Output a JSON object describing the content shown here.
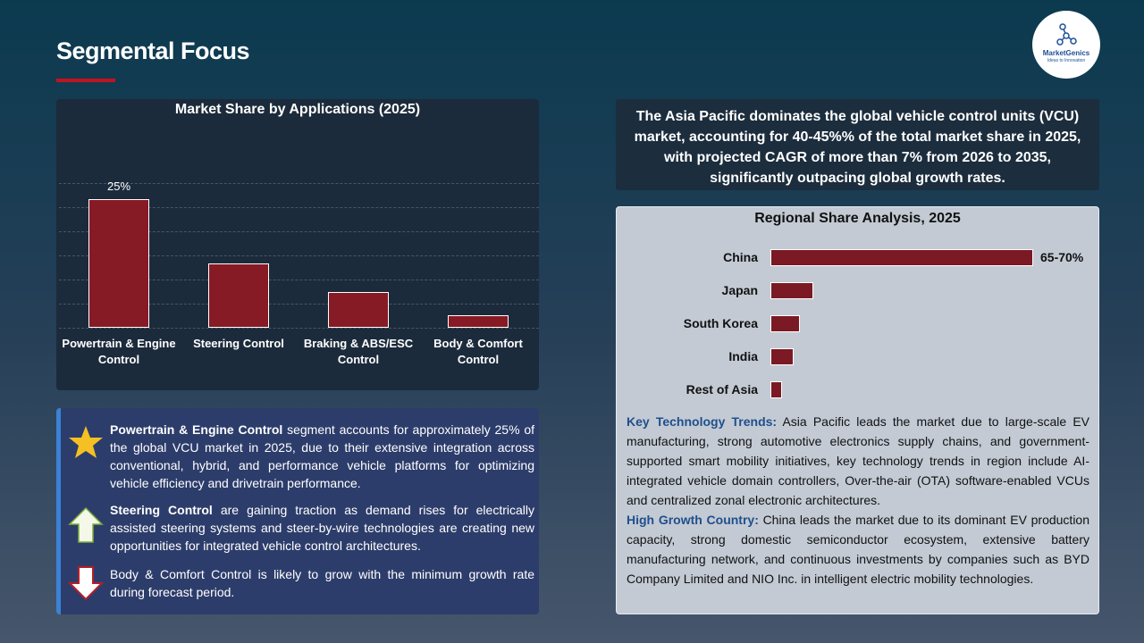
{
  "title": "Segmental Focus",
  "logo": {
    "name": "MarketGenics",
    "tagline": "Ideas to Innovation"
  },
  "chart_data": [
    {
      "type": "bar",
      "title": "Market Share by Applications (2025)",
      "categories": [
        "Powertrain & Engine Control",
        "Steering Control",
        "Braking & ABS/ESC Control",
        "Body & Comfort Control"
      ],
      "values": [
        25,
        12.5,
        7,
        2.5
      ],
      "value_labels": [
        "25%",
        null,
        null,
        null
      ],
      "color": "#861a25",
      "ylim": [
        0,
        30
      ]
    },
    {
      "type": "hbar",
      "title": "Regional Share Analysis, 2025",
      "categories": [
        "China",
        "Japan",
        "South Korea",
        "India",
        "Rest of Asia"
      ],
      "values": [
        67.5,
        11,
        7.5,
        6,
        3
      ],
      "value_labels": [
        "65-70%",
        null,
        null,
        null,
        null
      ],
      "color": "#7b1a24",
      "xlim": [
        0,
        67.5
      ]
    }
  ],
  "bullets": [
    {
      "bold": "Powertrain & Engine Control",
      "text": " segment accounts for approximately 25% of the global VCU market in 2025, due to their extensive integration across conventional, hybrid, and performance vehicle platforms for optimizing vehicle efficiency and drivetrain performance."
    },
    {
      "bold": "Steering Control",
      "text": " are gaining traction as demand rises for electrically assisted steering systems and steer-by-wire technologies are creating new opportunities for integrated vehicle control architectures."
    },
    {
      "text": "Body & Comfort Control is likely to grow with the minimum growth rate during forecast period."
    }
  ],
  "summary": "The Asia Pacific dominates the global vehicle control units (VCU) market, accounting for 40-45%% of the total market share in 2025, with projected CAGR of more than 7% from 2026 to 2035, significantly outpacing global growth rates.",
  "insights": [
    {
      "heading": "Key Technology Trends:",
      "text": " Asia Pacific leads the market due to large-scale EV manufacturing, strong automotive electronics supply chains, and government-supported smart mobility initiatives, key technology trends in region include AI-integrated vehicle domain controllers, Over-the-air (OTA) software-enabled VCUs and centralized zonal electronic architectures."
    },
    {
      "heading": "High Growth Country:",
      "text": " China leads the market due to its dominant EV production capacity, strong domestic semiconductor ecosystem, extensive battery manufacturing network, and continuous investments by companies such as BYD Company Limited and NIO Inc. in intelligent electric mobility technologies."
    }
  ]
}
